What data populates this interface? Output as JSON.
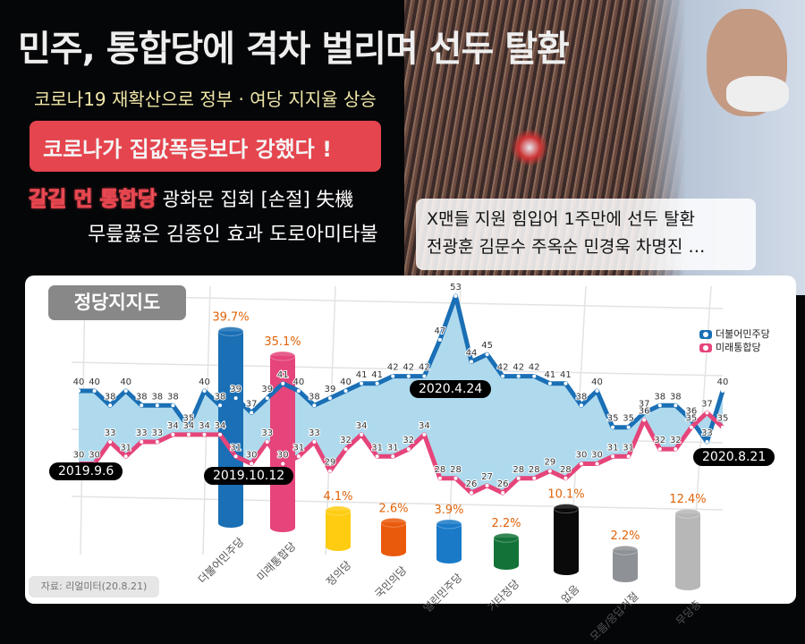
{
  "header": {
    "title": "민주, 통합당에 격차 벌리며 선두 탈환",
    "subtitle": "코로나19 재확산으로 정부 · 여당 지지율 상승",
    "highlight": "코로나가 집값폭등보다 강했다 !",
    "line3_emph": "갈길 먼 통합당",
    "line3_rest": "광화문 집회 [손절] 失機",
    "line4": "무릎꿇은 김종인 효과 도로아미타불"
  },
  "photo_caption": {
    "line1": "X맨들 지원 힘입어 1주만에 선두 탈환",
    "line2": "전광훈 김문수 주옥순 민경욱 차명진 …"
  },
  "panel": {
    "badge": "정당지지도",
    "source": "자료: 리얼미터(20.8.21)"
  },
  "colors": {
    "democratic": "#1a6fb5",
    "unified": "#e5457a",
    "fill": "#afdaee"
  },
  "chart_data": [
    {
      "type": "line",
      "title": "정당지지도",
      "legend": [
        "더불어민주당",
        "미래통합당"
      ],
      "legend_position": "right",
      "annotations": [
        "2019.9.6",
        "2019.10.12",
        "2020.4.24",
        "2020.8.21"
      ],
      "series": [
        {
          "name": "더불어민주당",
          "values": [
            40,
            40,
            38,
            40,
            38,
            38,
            38,
            35,
            40,
            38,
            39,
            37,
            39,
            41,
            40,
            38,
            39,
            40,
            41,
            41,
            42,
            42,
            42,
            47,
            53,
            44,
            45,
            42,
            42,
            42,
            41,
            41,
            38,
            40,
            35,
            35,
            37,
            38,
            38,
            36,
            33,
            40
          ]
        },
        {
          "name": "미래통합당",
          "values": [
            30,
            30,
            33,
            31,
            33,
            33,
            34,
            34,
            34,
            34,
            31,
            30,
            33,
            30,
            31,
            33,
            29,
            32,
            34,
            31,
            31,
            32,
            34,
            28,
            28,
            26,
            27,
            26,
            28,
            28,
            29,
            28,
            30,
            30,
            31,
            31,
            36,
            32,
            32,
            35,
            37,
            35
          ]
        }
      ]
    },
    {
      "type": "bar",
      "categories": [
        "더불어민주당",
        "미래통합당",
        "정의당",
        "국민의당",
        "열린민주당",
        "기타정당",
        "없음",
        "모름/응답거절",
        "무당층"
      ],
      "values": [
        39.7,
        35.1,
        4.1,
        2.6,
        3.9,
        2.2,
        10.1,
        2.2,
        12.4
      ],
      "labels": [
        "39.7%",
        "35.1%",
        "4.1%",
        "2.6%",
        "3.9%",
        "2.2%",
        "10.1%",
        "2.2%",
        "12.4%"
      ],
      "colors": [
        "#1a6fb5",
        "#e5457a",
        "#ffcc11",
        "#ea5a0c",
        "#1a7ac8",
        "#137238",
        "#0a0a0a",
        "#8e9296",
        "#b7b7b7"
      ]
    }
  ]
}
